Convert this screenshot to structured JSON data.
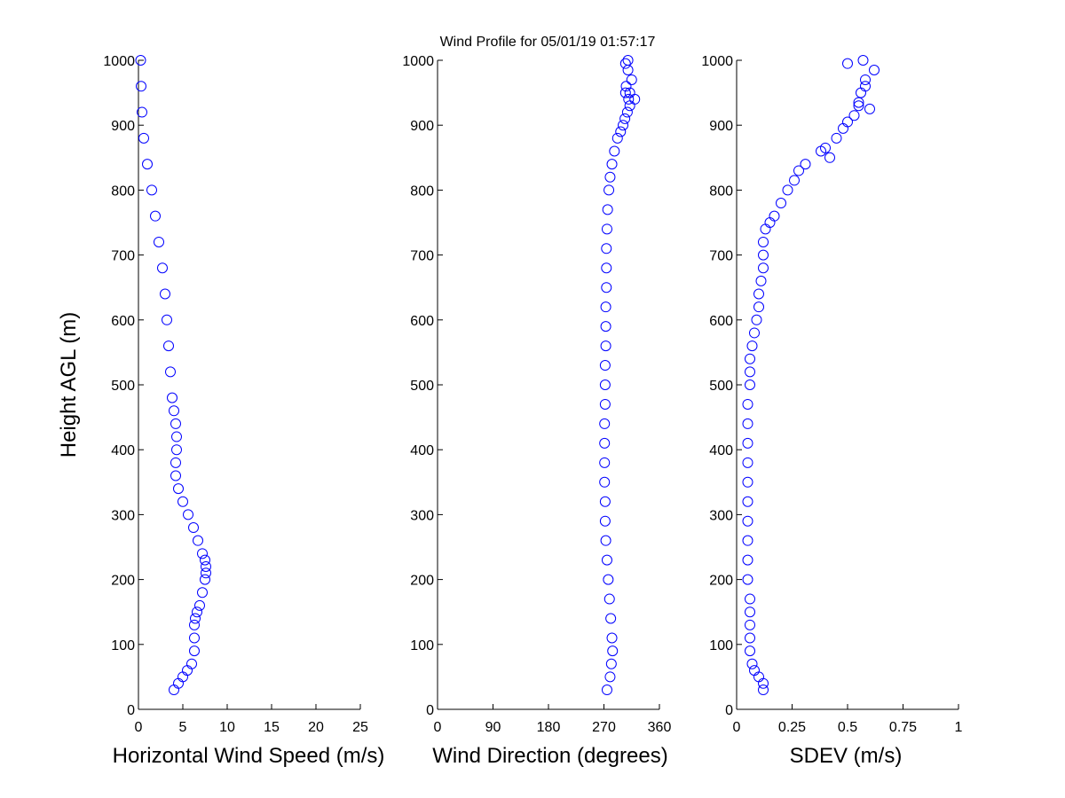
{
  "title": "Wind Profile for  05/01/19 01:57:17",
  "colors": {
    "marker": "#0000ff",
    "axis": "#000000",
    "background": "#ffffff"
  },
  "chart_data": [
    {
      "type": "scatter",
      "marker": "open-circle",
      "xlabel": "Horizontal Wind Speed (m/s)",
      "ylabel": "Height AGL (m)",
      "xlim": [
        0,
        25
      ],
      "ylim": [
        0,
        1000
      ],
      "xticks": [
        "0",
        "5",
        "10",
        "15",
        "20",
        "25"
      ],
      "yticks": [
        "0",
        "100",
        "200",
        "300",
        "400",
        "500",
        "600",
        "700",
        "800",
        "900",
        "1000"
      ],
      "x": [
        4.0,
        4.5,
        5.0,
        5.5,
        6.0,
        6.3,
        6.3,
        6.3,
        6.4,
        6.6,
        6.9,
        7.2,
        7.5,
        7.6,
        7.6,
        7.5,
        7.2,
        6.7,
        6.2,
        5.6,
        5.0,
        4.5,
        4.2,
        4.2,
        4.3,
        4.3,
        4.2,
        4.0,
        3.8,
        3.6,
        3.4,
        3.2,
        3.0,
        2.7,
        2.3,
        1.9,
        1.5,
        1.0,
        0.6,
        0.4,
        0.3,
        0.25
      ],
      "y": [
        30,
        40,
        50,
        60,
        70,
        90,
        110,
        130,
        140,
        150,
        160,
        180,
        200,
        210,
        220,
        230,
        240,
        260,
        280,
        300,
        320,
        340,
        360,
        380,
        400,
        420,
        440,
        460,
        480,
        520,
        560,
        600,
        640,
        680,
        720,
        760,
        800,
        840,
        880,
        920,
        960,
        1000
      ]
    },
    {
      "type": "scatter",
      "marker": "open-circle",
      "xlabel": "Wind Direction (degrees)",
      "ylabel": "",
      "xlim": [
        0,
        360
      ],
      "ylim": [
        0,
        1000
      ],
      "xticks": [
        "0",
        "90",
        "180",
        "270",
        "360"
      ],
      "yticks": [
        "0",
        "100",
        "200",
        "300",
        "400",
        "500",
        "600",
        "700",
        "800",
        "900",
        "1000"
      ],
      "x": [
        275,
        280,
        282,
        284,
        283,
        281,
        279,
        277,
        275,
        273,
        272,
        272,
        271,
        271,
        271,
        271,
        272,
        272,
        272,
        273,
        273,
        273,
        274,
        274,
        274,
        275,
        276,
        278,
        280,
        283,
        287,
        292,
        297,
        301,
        304,
        308,
        312,
        310,
        305,
        306,
        312,
        320,
        315,
        309,
        305,
        309
      ],
      "y": [
        30,
        50,
        70,
        90,
        110,
        140,
        170,
        200,
        230,
        260,
        290,
        320,
        350,
        380,
        410,
        440,
        470,
        500,
        530,
        560,
        590,
        620,
        650,
        680,
        710,
        740,
        770,
        800,
        820,
        840,
        860,
        880,
        890,
        900,
        910,
        920,
        930,
        940,
        950,
        960,
        950,
        940,
        970,
        985,
        995,
        1000
      ]
    },
    {
      "type": "scatter",
      "marker": "open-circle",
      "xlabel": "SDEV  (m/s)",
      "ylabel": "",
      "xlim": [
        0,
        1
      ],
      "ylim": [
        0,
        1000
      ],
      "xticks": [
        "0",
        "0.25",
        "0.5",
        "0.75",
        "1"
      ],
      "yticks": [
        "0",
        "100",
        "200",
        "300",
        "400",
        "500",
        "600",
        "700",
        "800",
        "900",
        "1000"
      ],
      "x": [
        0.12,
        0.12,
        0.1,
        0.08,
        0.07,
        0.06,
        0.06,
        0.06,
        0.06,
        0.06,
        0.05,
        0.05,
        0.05,
        0.05,
        0.05,
        0.05,
        0.05,
        0.05,
        0.05,
        0.05,
        0.06,
        0.06,
        0.06,
        0.07,
        0.08,
        0.09,
        0.1,
        0.1,
        0.11,
        0.12,
        0.12,
        0.12,
        0.13,
        0.15,
        0.17,
        0.2,
        0.23,
        0.26,
        0.28,
        0.31,
        0.38,
        0.42,
        0.4,
        0.45,
        0.48,
        0.5,
        0.53,
        0.55,
        0.56,
        0.58,
        0.6,
        0.55,
        0.58,
        0.62,
        0.5,
        0.57
      ],
      "y": [
        30,
        40,
        50,
        60,
        70,
        90,
        110,
        130,
        150,
        170,
        200,
        230,
        260,
        290,
        320,
        350,
        380,
        410,
        440,
        470,
        500,
        520,
        540,
        560,
        580,
        600,
        620,
        640,
        660,
        680,
        700,
        720,
        740,
        750,
        760,
        780,
        800,
        815,
        830,
        840,
        860,
        850,
        865,
        880,
        895,
        905,
        915,
        935,
        950,
        960,
        925,
        930,
        970,
        985,
        995,
        1000
      ]
    }
  ]
}
